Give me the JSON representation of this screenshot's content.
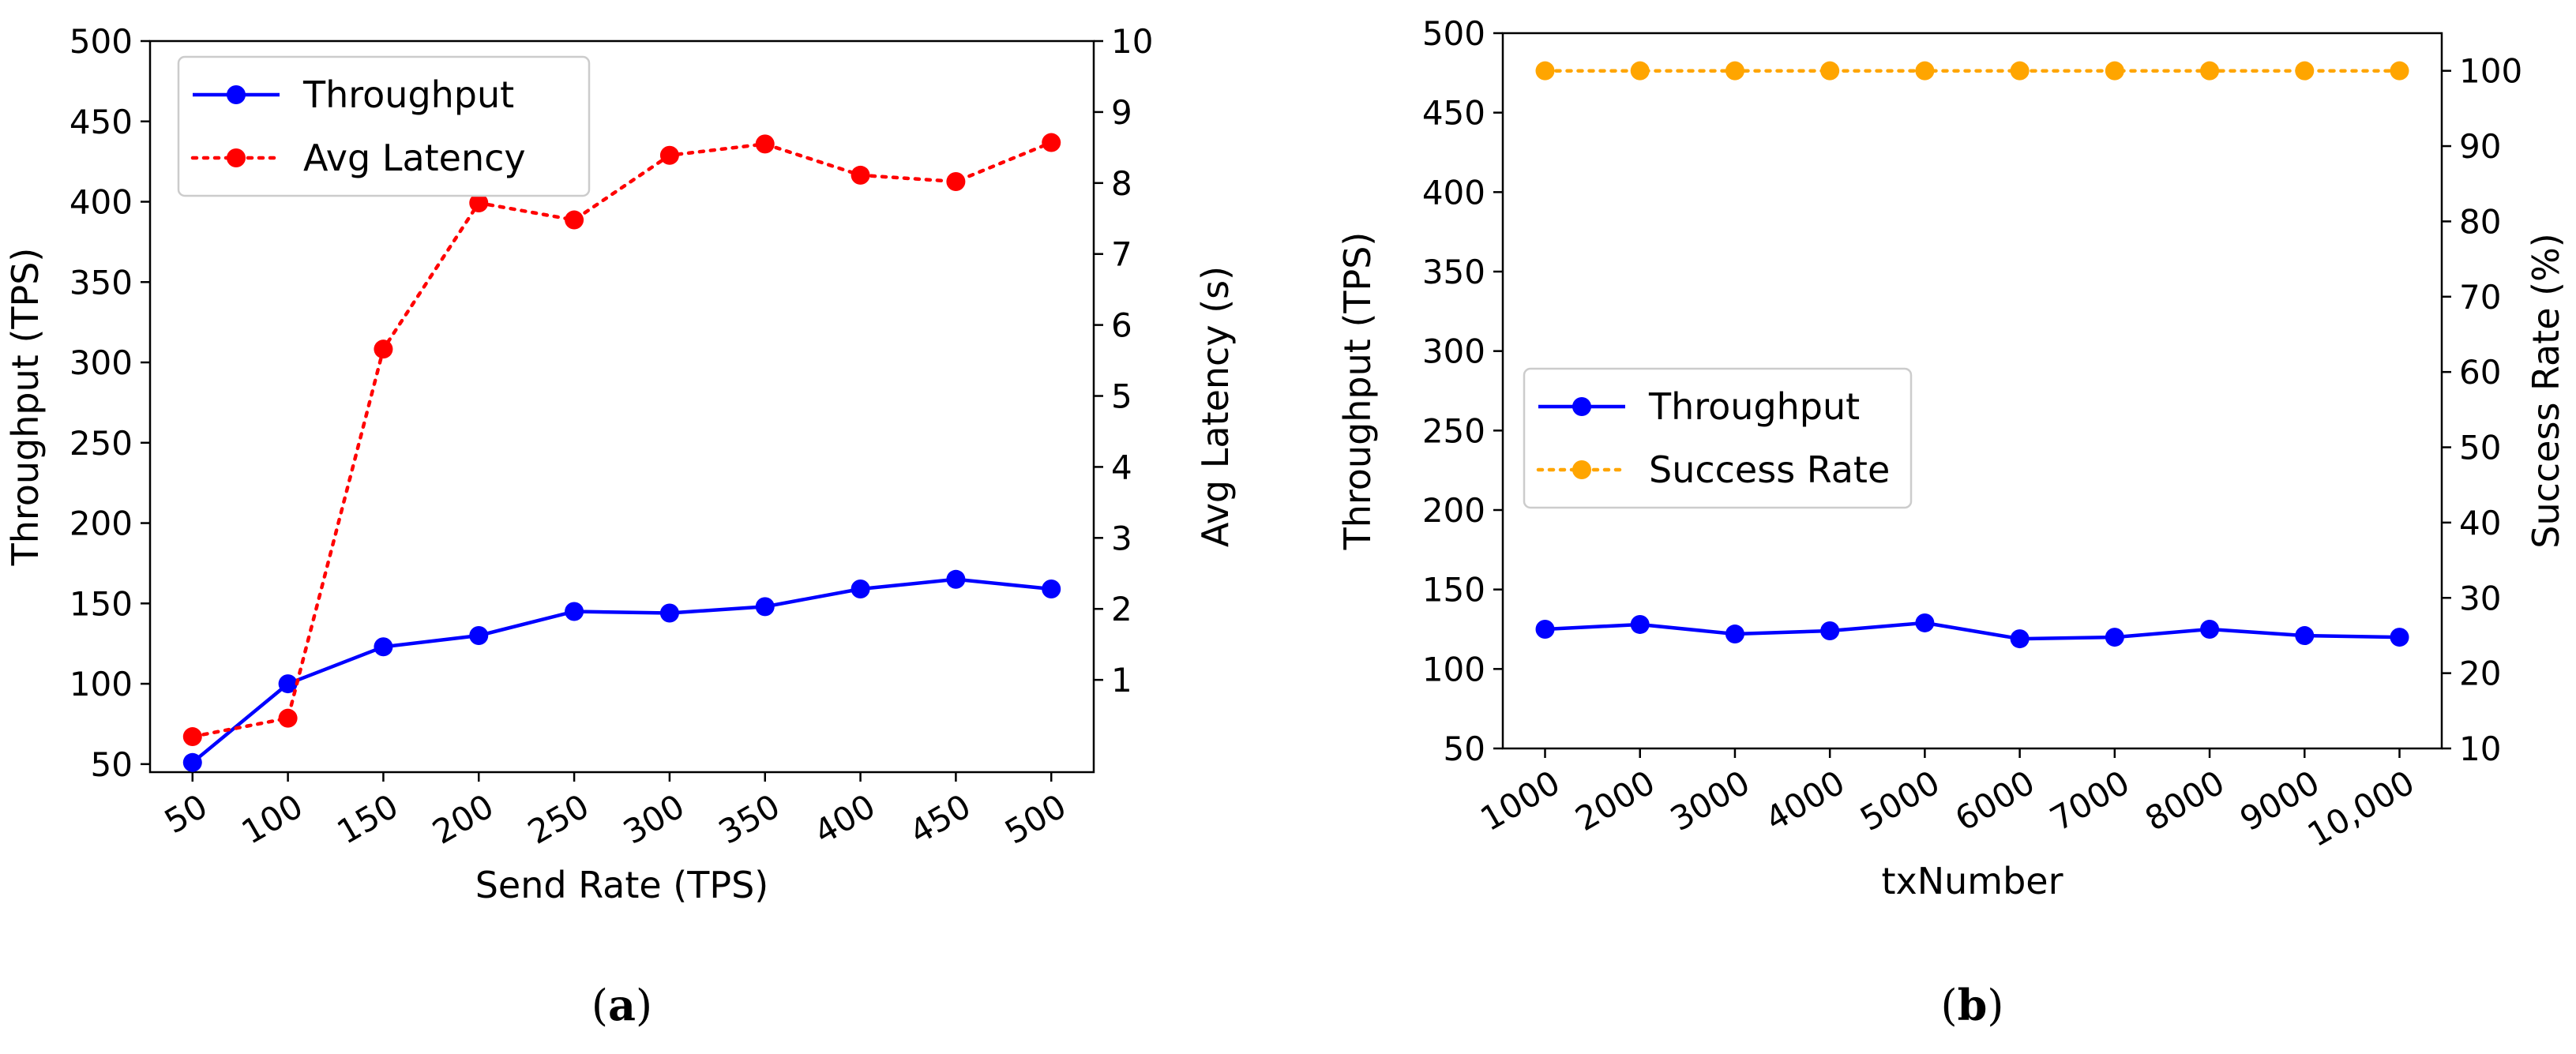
{
  "chart_data": [
    {
      "type": "line",
      "panel_label": "(a)",
      "panel_letter": "a",
      "xlabel": "Send Rate (TPS)",
      "ylabel": "Throughput (TPS)",
      "y2label": "Avg Latency (s)",
      "x": [
        50,
        100,
        150,
        200,
        250,
        300,
        350,
        400,
        450,
        500
      ],
      "x_tick_labels": [
        "50",
        "100",
        "150",
        "200",
        "250",
        "300",
        "350",
        "400",
        "450",
        "500"
      ],
      "ylim": [
        45,
        500
      ],
      "y_ticks": [
        50,
        100,
        150,
        200,
        250,
        300,
        350,
        400,
        450,
        500
      ],
      "y2lim": [
        -0.3,
        10
      ],
      "y2_ticks": [
        1,
        2,
        3,
        4,
        5,
        6,
        7,
        8,
        9,
        10
      ],
      "legend_position": "top-left",
      "series": [
        {
          "name": "Throughput",
          "axis": "left",
          "color": "#0000ff",
          "style": "solid",
          "values": [
            51,
            100,
            123,
            130,
            145,
            144,
            148,
            159,
            165,
            159
          ]
        },
        {
          "name": "Avg Latency",
          "axis": "right",
          "color": "#ff0000",
          "style": "dotted",
          "values": [
            0.2,
            0.46,
            5.66,
            7.72,
            7.48,
            8.39,
            8.55,
            8.11,
            8.02,
            8.57
          ]
        }
      ]
    },
    {
      "type": "line",
      "panel_label": "(b)",
      "panel_letter": "b",
      "xlabel": "txNumber",
      "ylabel": "Throughput (TPS)",
      "y2label": "Success Rate (%)",
      "x": [
        1000,
        2000,
        3000,
        4000,
        5000,
        6000,
        7000,
        8000,
        9000,
        10000
      ],
      "x_tick_labels": [
        "1000",
        "2000",
        "3000",
        "4000",
        "5000",
        "6000",
        "7000",
        "8000",
        "9000",
        "10,000"
      ],
      "ylim": [
        50,
        500
      ],
      "y_ticks": [
        50,
        100,
        150,
        200,
        250,
        300,
        350,
        400,
        450,
        500
      ],
      "y2lim": [
        10,
        105
      ],
      "y2_ticks": [
        10,
        20,
        30,
        40,
        50,
        60,
        70,
        80,
        90,
        100
      ],
      "legend_position": "center-left",
      "series": [
        {
          "name": "Throughput",
          "axis": "left",
          "color": "#0000ff",
          "style": "solid",
          "values": [
            125,
            128,
            122,
            124,
            129,
            119,
            120,
            125,
            121,
            120
          ]
        },
        {
          "name": "Success Rate",
          "axis": "right",
          "color": "#ffa500",
          "style": "dotted",
          "values": [
            100,
            100,
            100,
            100,
            100,
            100,
            100,
            100,
            100,
            100
          ]
        }
      ]
    }
  ]
}
